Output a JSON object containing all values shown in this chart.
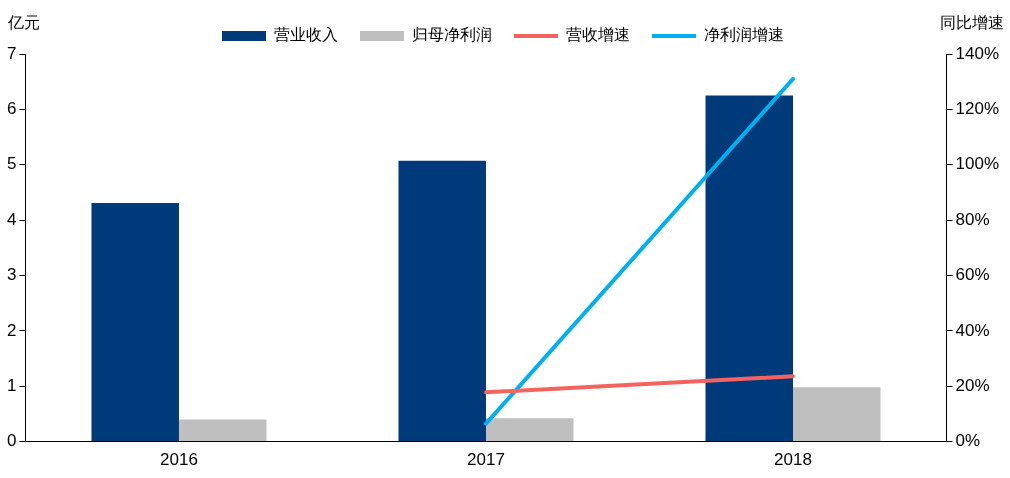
{
  "chart_data": {
    "type": "bar",
    "ylabel": "亿元",
    "y2label": "同比增速",
    "categories": [
      "2016",
      "2017",
      "2018"
    ],
    "series": [
      {
        "name": "营业收入",
        "color": "#003a7a",
        "values": [
          4.31,
          5.07,
          6.25
        ]
      },
      {
        "name": "归母净利润",
        "color": "#bfbfbf",
        "values": [
          0.4,
          0.42,
          0.98
        ]
      },
      {
        "name": "营收增速",
        "type": "line",
        "axis": "y2",
        "color": "#f4645f",
        "values": [
          null,
          17.8,
          23.6
        ]
      },
      {
        "name": "净利润增速",
        "type": "line",
        "axis": "y2",
        "color": "#00b0f0",
        "values": [
          null,
          6.5,
          131
        ]
      }
    ],
    "ylim": [
      0,
      7
    ],
    "yticks": [
      0,
      1,
      2,
      3,
      4,
      5,
      6,
      7
    ],
    "y2lim": [
      0,
      140
    ],
    "y2ticks": [
      {
        "value": 0,
        "label": "0%"
      },
      {
        "value": 20,
        "label": "20%"
      },
      {
        "value": 40,
        "label": "40%"
      },
      {
        "value": 60,
        "label": "60%"
      },
      {
        "value": 80,
        "label": "80%"
      },
      {
        "value": 100,
        "label": "100%"
      },
      {
        "value": 120,
        "label": "120%"
      },
      {
        "value": 140,
        "label": "140%"
      }
    ],
    "grid": false,
    "legend": "top",
    "marker": "none",
    "line_style": "solid"
  }
}
